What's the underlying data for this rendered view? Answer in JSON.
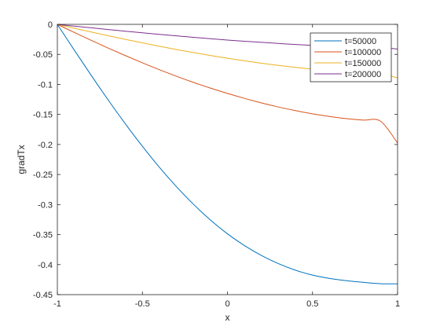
{
  "chart_data": {
    "type": "line",
    "xlabel": "x",
    "ylabel": "gradTx",
    "xlim": [
      -1,
      1
    ],
    "ylim": [
      -0.45,
      0
    ],
    "xticks": [
      -1,
      -0.5,
      0,
      0.5,
      1
    ],
    "xtick_labels": [
      "-1",
      "-0.5",
      "0",
      "0.5",
      "1"
    ],
    "yticks": [
      0,
      -0.05,
      -0.1,
      -0.15,
      -0.2,
      -0.25,
      -0.3,
      -0.35,
      -0.4,
      -0.45
    ],
    "ytick_labels": [
      "0",
      "-0.05",
      "-0.1",
      "-0.15",
      "-0.2",
      "-0.25",
      "-0.3",
      "-0.35",
      "-0.4",
      "-0.45"
    ],
    "grid": false,
    "legend_position": "top-right",
    "x": [
      -1,
      -0.9,
      -0.8,
      -0.7,
      -0.6,
      -0.5,
      -0.4,
      -0.3,
      -0.2,
      -0.1,
      0,
      0.1,
      0.2,
      0.3,
      0.4,
      0.5,
      0.6,
      0.7,
      0.8,
      0.9,
      1
    ],
    "series": [
      {
        "name": "t=50000",
        "color": "#0072BD",
        "values": [
          0,
          -0.0431,
          -0.0853,
          -0.1264,
          -0.1657,
          -0.203,
          -0.238,
          -0.2702,
          -0.2995,
          -0.3257,
          -0.3487,
          -0.3683,
          -0.3848,
          -0.3984,
          -0.4093,
          -0.4175,
          -0.423,
          -0.4268,
          -0.4296,
          -0.4318,
          -0.432
        ]
      },
      {
        "name": "t=100000",
        "color": "#D95319",
        "values": [
          0,
          -0.0135,
          -0.0267,
          -0.0396,
          -0.052,
          -0.064,
          -0.0755,
          -0.0864,
          -0.0966,
          -0.1061,
          -0.115,
          -0.1232,
          -0.1308,
          -0.1376,
          -0.1436,
          -0.149,
          -0.1534,
          -0.157,
          -0.1594,
          -0.1612,
          -0.1975
        ]
      },
      {
        "name": "t=150000",
        "color": "#EDB120",
        "values": [
          0,
          -0.0065,
          -0.0128,
          -0.019,
          -0.025,
          -0.0308,
          -0.0364,
          -0.0418,
          -0.047,
          -0.0518,
          -0.0564,
          -0.0607,
          -0.0647,
          -0.0683,
          -0.0716,
          -0.0745,
          -0.077,
          -0.079,
          -0.0806,
          -0.0818,
          -0.0893
        ]
      },
      {
        "name": "t=200000",
        "color": "#7E2F8E",
        "values": [
          0,
          -0.003,
          -0.0058,
          -0.0087,
          -0.0114,
          -0.0141,
          -0.0167,
          -0.0192,
          -0.0216,
          -0.0239,
          -0.0261,
          -0.0281,
          -0.03,
          -0.0318,
          -0.0335,
          -0.035,
          -0.0363,
          -0.0373,
          -0.0382,
          -0.0388,
          -0.041
        ]
      }
    ]
  }
}
